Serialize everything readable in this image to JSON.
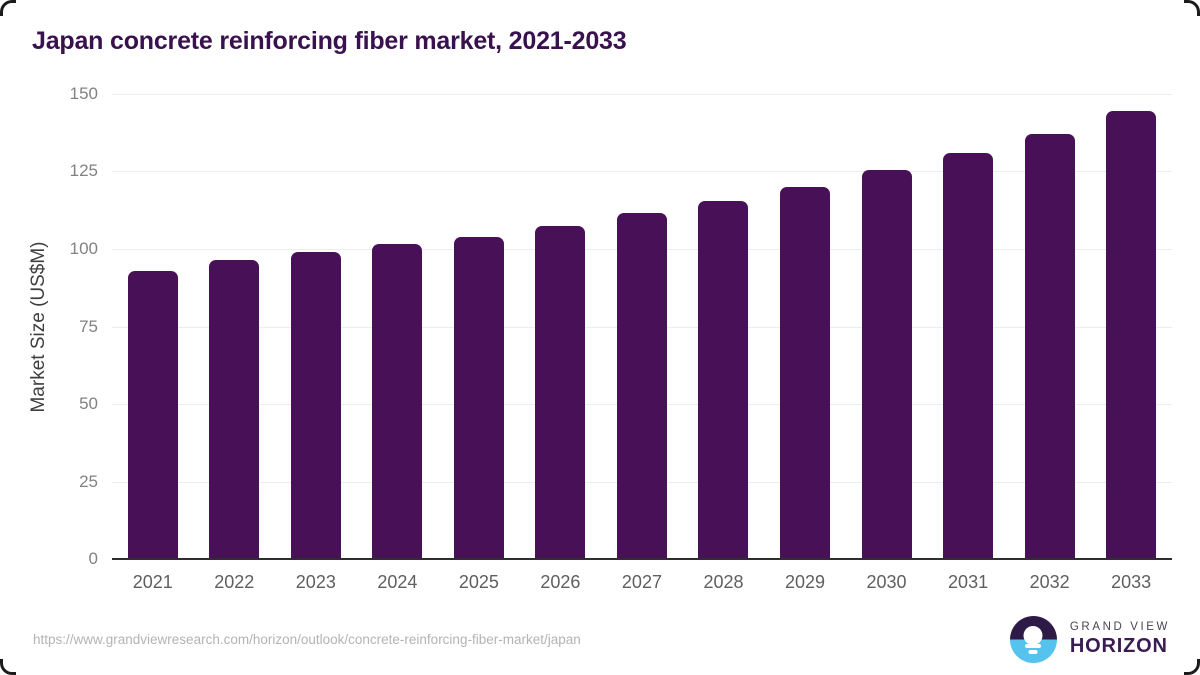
{
  "title": "Japan concrete reinforcing fiber market, 2021-2033",
  "footer": {
    "source_url": "https://www.grandviewresearch.com/horizon/outlook/concrete-reinforcing-fiber-market/japan",
    "logo": {
      "top_text": "GRAND VIEW",
      "bottom_text": "HORIZON"
    }
  },
  "colors": {
    "bar": "#481157",
    "title": "#38114e",
    "logo_purple": "#2e1a47",
    "logo_blue": "#56c3ef"
  },
  "chart_data": {
    "type": "bar",
    "title": "Japan concrete reinforcing fiber market, 2021-2033",
    "categories": [
      "2021",
      "2022",
      "2023",
      "2024",
      "2025",
      "2026",
      "2027",
      "2028",
      "2029",
      "2030",
      "2031",
      "2032",
      "2033"
    ],
    "values": [
      93,
      96.5,
      99,
      101.5,
      104,
      107.5,
      111.5,
      115.5,
      120,
      125.5,
      131,
      137,
      144.5
    ],
    "xlabel": "",
    "ylabel": "Market Size (US$M)",
    "ylim": [
      0,
      150
    ],
    "yticks": [
      0,
      25,
      50,
      75,
      100,
      125,
      150
    ],
    "grid": true,
    "legend": false,
    "bar_color": "#481157"
  }
}
